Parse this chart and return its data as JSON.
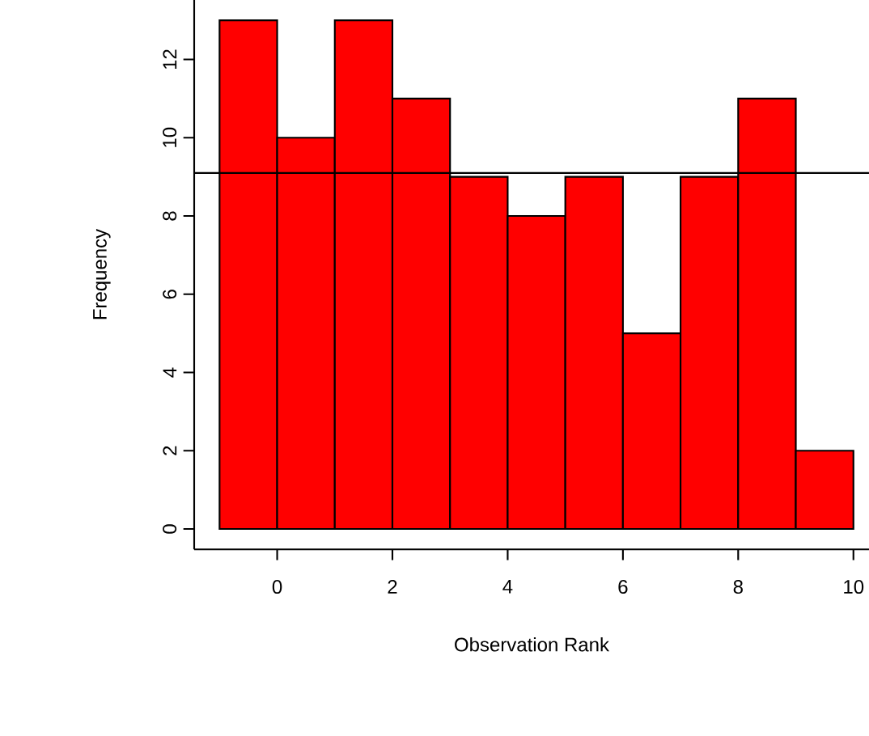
{
  "chart_data": {
    "type": "histogram",
    "xlabel": "Observation Rank",
    "ylabel": "Frequency",
    "bins": [
      -1,
      0,
      1,
      2,
      3,
      4,
      5,
      6,
      7,
      8,
      9,
      10
    ],
    "values": [
      13,
      10,
      13,
      11,
      9,
      8,
      9,
      5,
      9,
      11,
      2
    ],
    "color": "#ff0000",
    "xlim": [
      -1.44,
      10.27
    ],
    "ylim": [
      -0.52,
      13.52
    ],
    "xticks": [
      0,
      2,
      4,
      6,
      8,
      10
    ],
    "yticks": [
      0,
      2,
      4,
      6,
      8,
      10,
      12
    ],
    "ref_lines": [
      {
        "axis": "y",
        "value": 9.1,
        "color": "#000000"
      }
    ],
    "grid": false
  }
}
